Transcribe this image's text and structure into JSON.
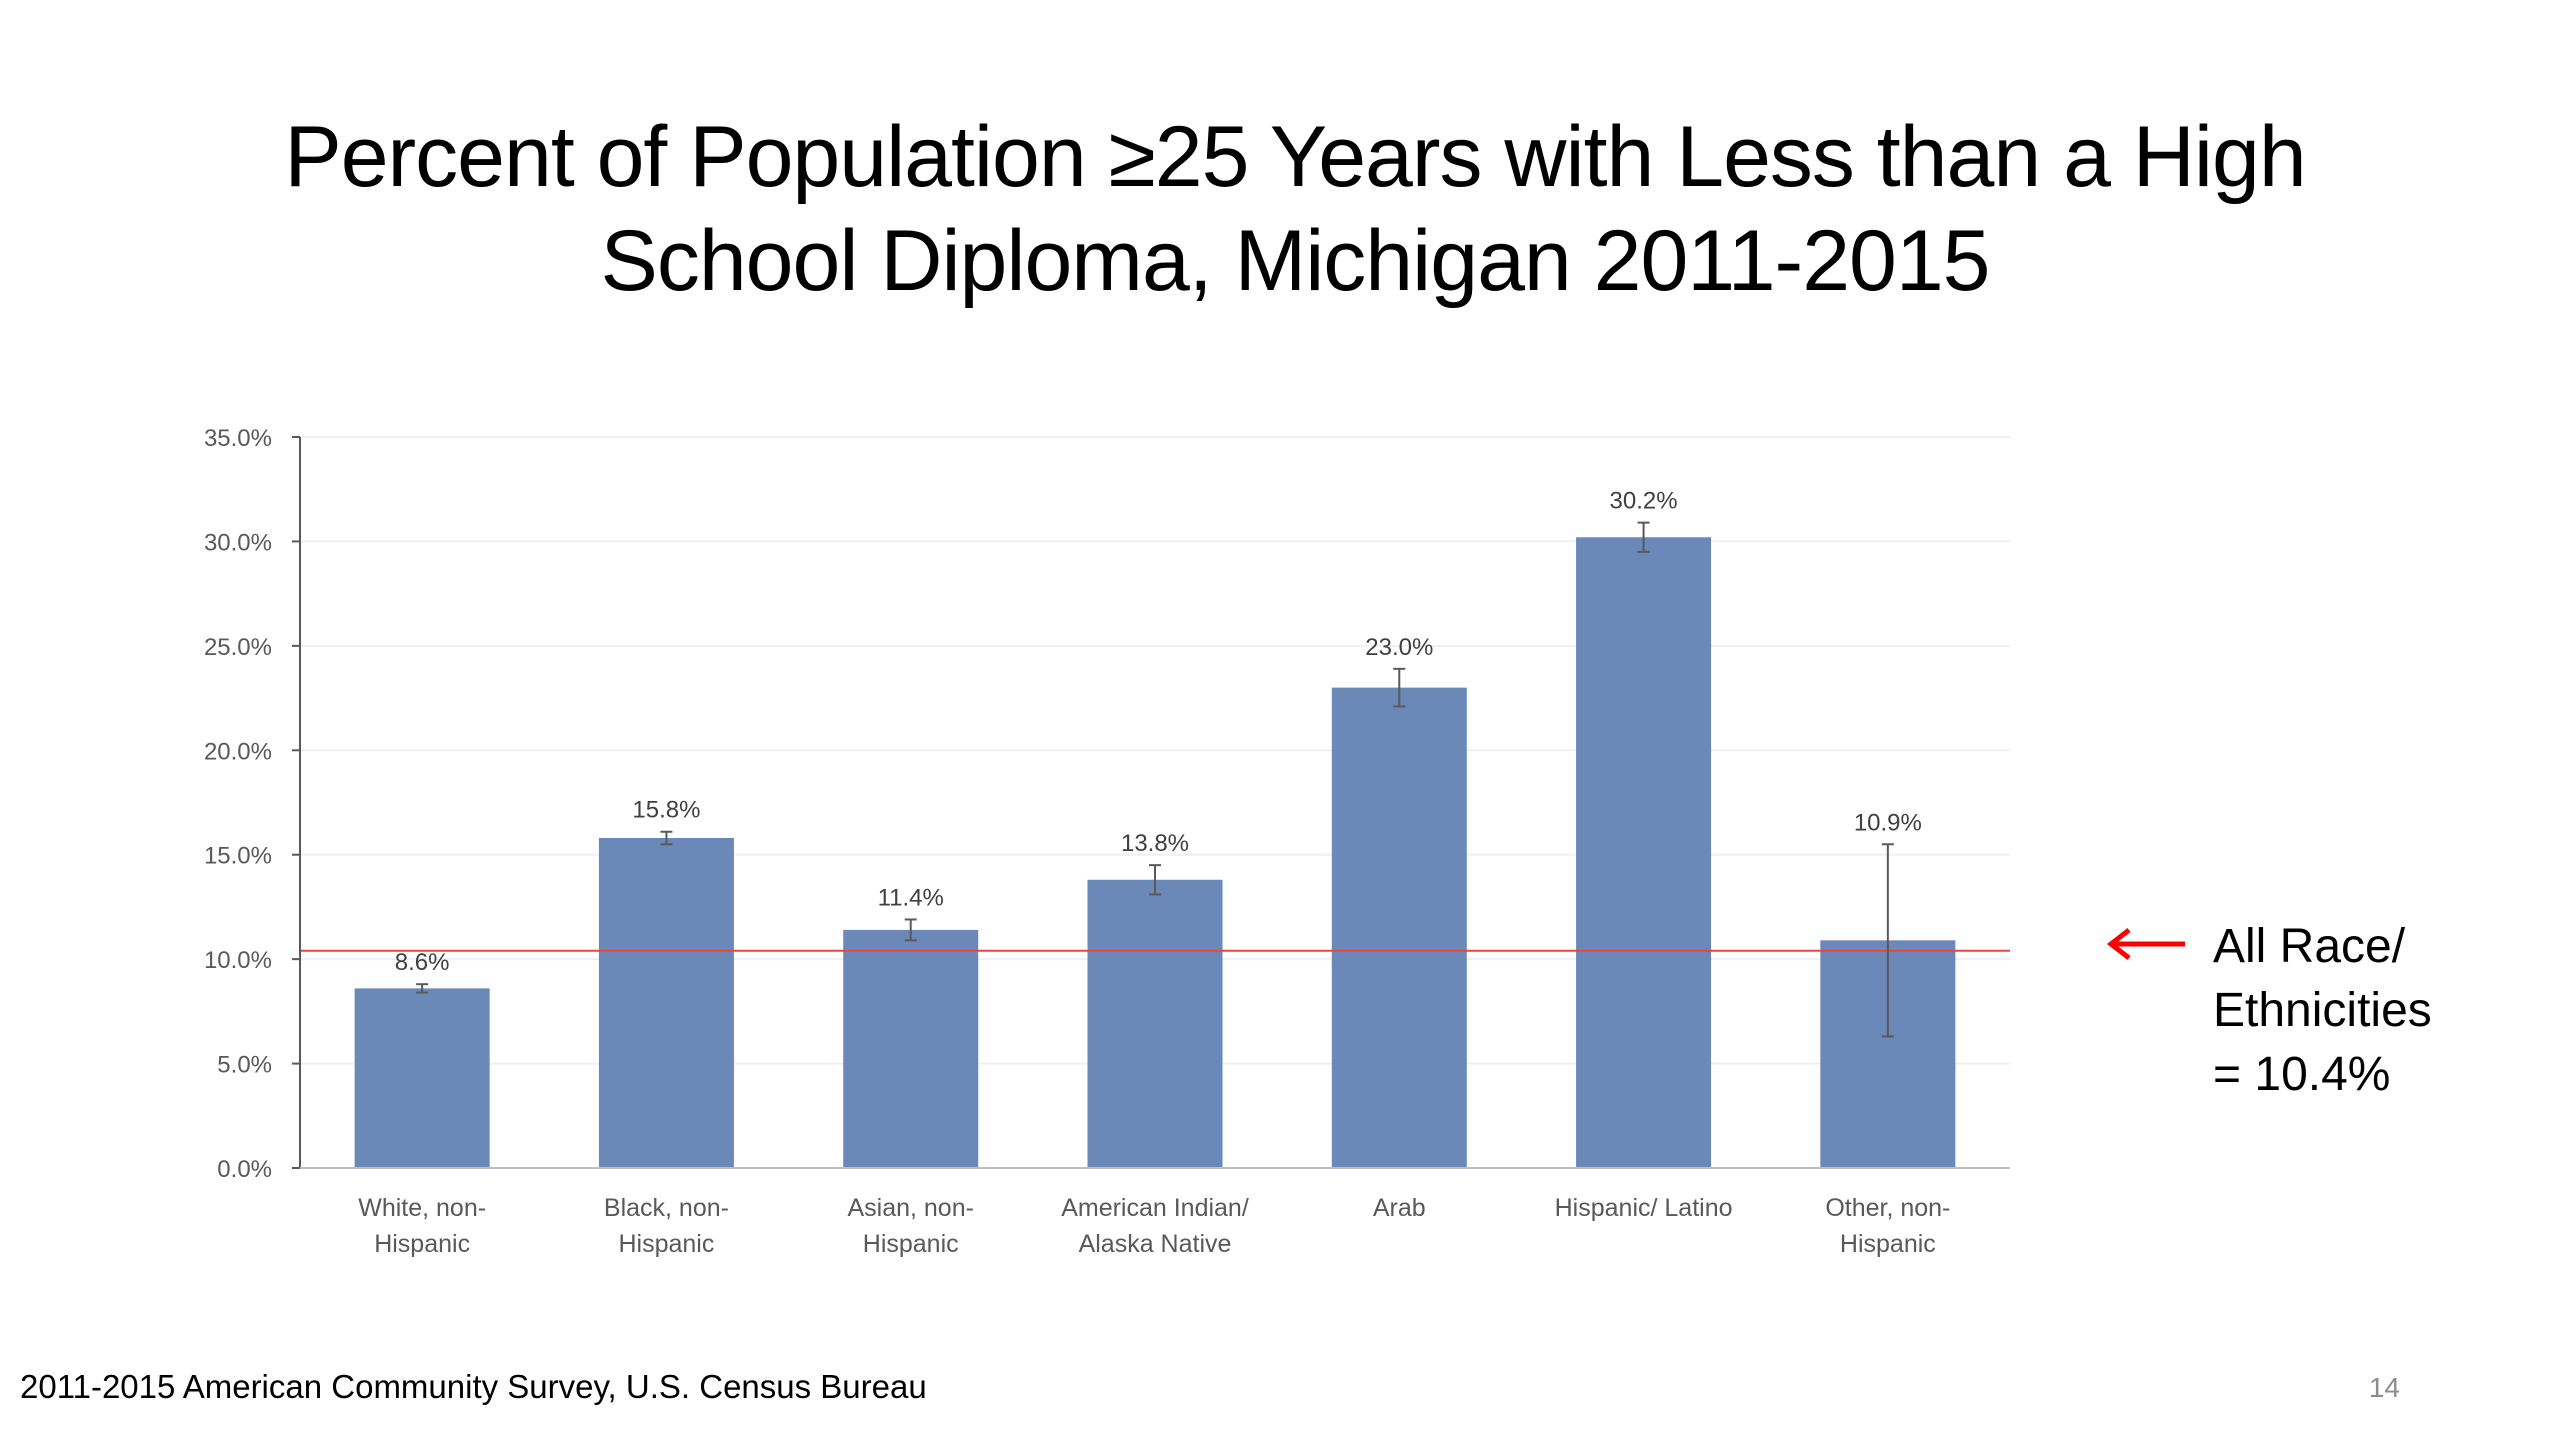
{
  "slide": {
    "title_line1": "Percent of Population ≥25 Years with Less than a High",
    "title_line2": "School Diploma, Michigan 2011-2015",
    "source": "2011-2015 American Community Survey, U.S. Census Bureau",
    "page_number": "14"
  },
  "annotation": {
    "icon": "arrow-left-icon",
    "line1": "All Race/",
    "line2": "Ethnicities",
    "line3": "= 10.4%",
    "color": "#ff0000"
  },
  "chart_data": {
    "type": "bar",
    "categories": [
      [
        "White, non-",
        "Hispanic"
      ],
      [
        "Black, non-",
        "Hispanic"
      ],
      [
        "Asian, non-",
        "Hispanic"
      ],
      [
        "American Indian/",
        "Alaska Native"
      ],
      [
        "Arab"
      ],
      [
        "Hispanic/ Latino"
      ],
      [
        "Other, non-",
        "Hispanic"
      ]
    ],
    "values": [
      8.6,
      15.8,
      11.4,
      13.8,
      23.0,
      30.2,
      10.9
    ],
    "data_labels": [
      "8.6%",
      "15.8%",
      "11.4%",
      "13.8%",
      "23.0%",
      "30.2%",
      "10.9%"
    ],
    "error_low": [
      8.4,
      15.5,
      10.9,
      13.1,
      22.1,
      29.5,
      6.3
    ],
    "error_high": [
      8.8,
      16.1,
      11.9,
      14.5,
      23.9,
      30.9,
      15.5
    ],
    "ylim": [
      0,
      35
    ],
    "yticks": [
      0,
      5,
      10,
      15,
      20,
      25,
      30,
      35
    ],
    "ytick_labels": [
      "0.0%",
      "5.0%",
      "10.0%",
      "15.0%",
      "20.0%",
      "25.0%",
      "30.0%",
      "35.0%"
    ],
    "reference_line": 10.4,
    "bar_color": "#6a88b8",
    "reference_color": "#e8463e",
    "grid": true,
    "legend": "none"
  }
}
